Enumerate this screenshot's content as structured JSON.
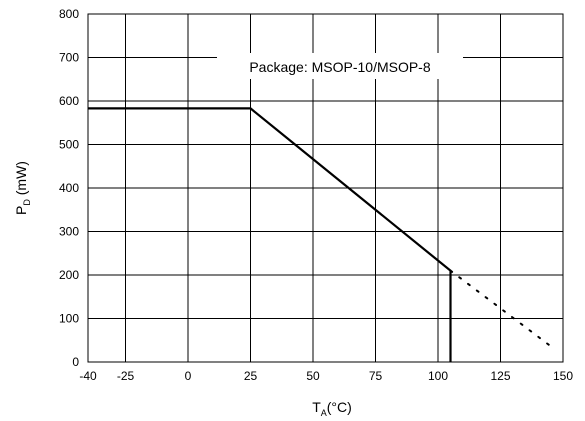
{
  "chart_data": {
    "type": "line",
    "title": "",
    "xlabel": {
      "main": "T",
      "sub": "A",
      "unit": "(°C)"
    },
    "ylabel": {
      "main": "P",
      "sub": "D",
      "unit": " (mW)"
    },
    "xlim": [
      -40,
      150
    ],
    "ylim": [
      0,
      800
    ],
    "x_ticks": [
      -40,
      -25,
      0,
      25,
      50,
      75,
      100,
      125,
      150
    ],
    "x_tick_labels": [
      "-40",
      "-25",
      "0",
      "25",
      "50",
      "75",
      "100",
      "125",
      "150"
    ],
    "x_grid": [
      -40,
      -25,
      0,
      25,
      50,
      75,
      100,
      125,
      150
    ],
    "y_ticks": [
      0,
      100,
      200,
      300,
      400,
      500,
      600,
      700,
      800
    ],
    "y_tick_labels": [
      "0",
      "100",
      "200",
      "300",
      "400",
      "500",
      "600",
      "700",
      "800"
    ],
    "grid": true,
    "annotation": "Package: MSOP-10/MSOP-8",
    "series": [
      {
        "style": "solid",
        "x": [
          -40,
          25,
          105,
          105
        ],
        "y": [
          583,
          583,
          210,
          0
        ]
      },
      {
        "style": "dotted",
        "x": [
          105,
          147
        ],
        "y": [
          210,
          28
        ]
      }
    ]
  }
}
